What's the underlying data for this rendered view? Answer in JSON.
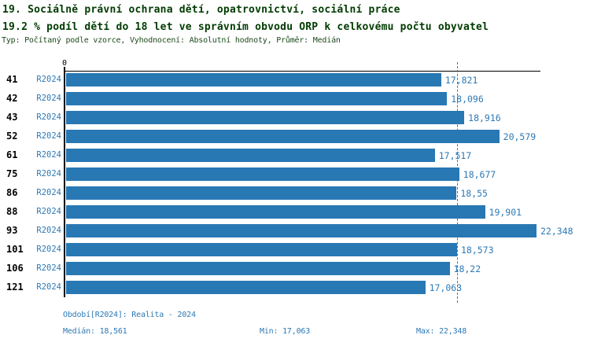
{
  "header": {
    "title": "19. Sociálně právní ochrana dětí, opatrovnictví, sociální práce",
    "subtitle": "19.2 % podíl dětí do 18 let ve správním obvodu ORP k celkovému počtu obyvatel",
    "meta": "Typ: Počítaný podle vzorce, Vyhodnocení: Absolutní hodnoty, Průměr: Medián"
  },
  "colors": {
    "bar": "#2878b4",
    "blue_text": "#2d79b5",
    "title_text": "#003b00",
    "axis": "#000000",
    "median_line": "#2e7ab6"
  },
  "chart_data": {
    "type": "bar",
    "orientation": "horizontal",
    "title": "19. Sociálně právní ochrana dětí, opatrovnictví, sociální práce",
    "subtitle": "19.2 % podíl dětí do 18 let ve správním obvodu ORP k celkovému počtu obyvatel",
    "categories": [
      "41",
      "42",
      "43",
      "52",
      "61",
      "75",
      "86",
      "88",
      "93",
      "101",
      "106",
      "121"
    ],
    "series_label": "R2024",
    "values": [
      17.821,
      18.096,
      18.916,
      20.579,
      17.517,
      18.677,
      18.55,
      19.901,
      22.348,
      18.573,
      18.22,
      17.063
    ],
    "value_labels": [
      "17,821",
      "18,096",
      "18,916",
      "20,579",
      "17,517",
      "18,677",
      "18,55",
      "19,901",
      "22,348",
      "18,573",
      "18,22",
      "17,063"
    ],
    "axis_origin_label": "0",
    "xlim": [
      0,
      22.348
    ],
    "xmax": 22.348,
    "median_line_value": 18.561,
    "grid": "off",
    "legend": "none",
    "bar_color": "#2878b4",
    "stats": {
      "median": 18.561,
      "min": 17.063,
      "max": 22.348
    }
  },
  "footer": {
    "period": "Období[R2024]: Realita - 2024",
    "median_label": "Medián: 18,561",
    "min_label": "Min: 17,063",
    "max_label": "Max: 22,348"
  }
}
